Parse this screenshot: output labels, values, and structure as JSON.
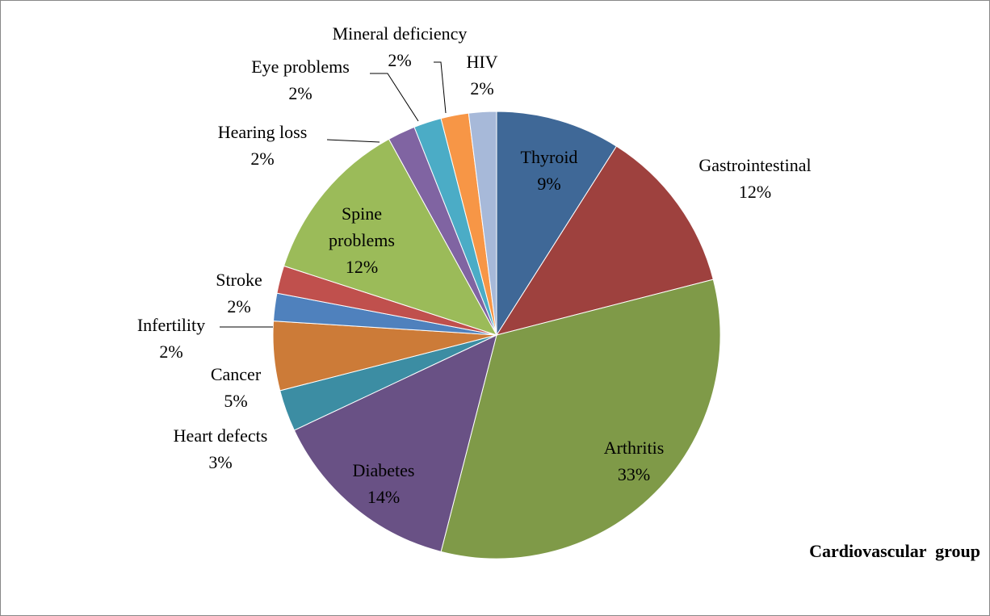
{
  "chart_data": {
    "type": "pie",
    "categories": [
      "Thyroid",
      "Gastrointestinal",
      "Arthritis",
      "Diabetes",
      "Heart defects",
      "Cancer",
      "Infertility",
      "Stroke",
      "Spine problems",
      "Hearing loss",
      "Eye problems",
      "Mineral deficiency",
      "HIV"
    ],
    "values": [
      9,
      12,
      33,
      14,
      3,
      5,
      2,
      2,
      12,
      2,
      2,
      2,
      2
    ],
    "value_labels": [
      "9%",
      "12%",
      "33%",
      "14%",
      "3%",
      "5%",
      "2%",
      "2%",
      "12%",
      "2%",
      "2%",
      "2%",
      "2%"
    ],
    "colors": [
      "#3f6897",
      "#9e413e",
      "#7f9a48",
      "#695185",
      "#3c8da3",
      "#cc7b38",
      "#4f81bd",
      "#c0504d",
      "#9bbb59",
      "#8064a2",
      "#4bacc6",
      "#f79646",
      "#a7b9d9"
    ],
    "annotation": "Cardiovascular  group"
  }
}
